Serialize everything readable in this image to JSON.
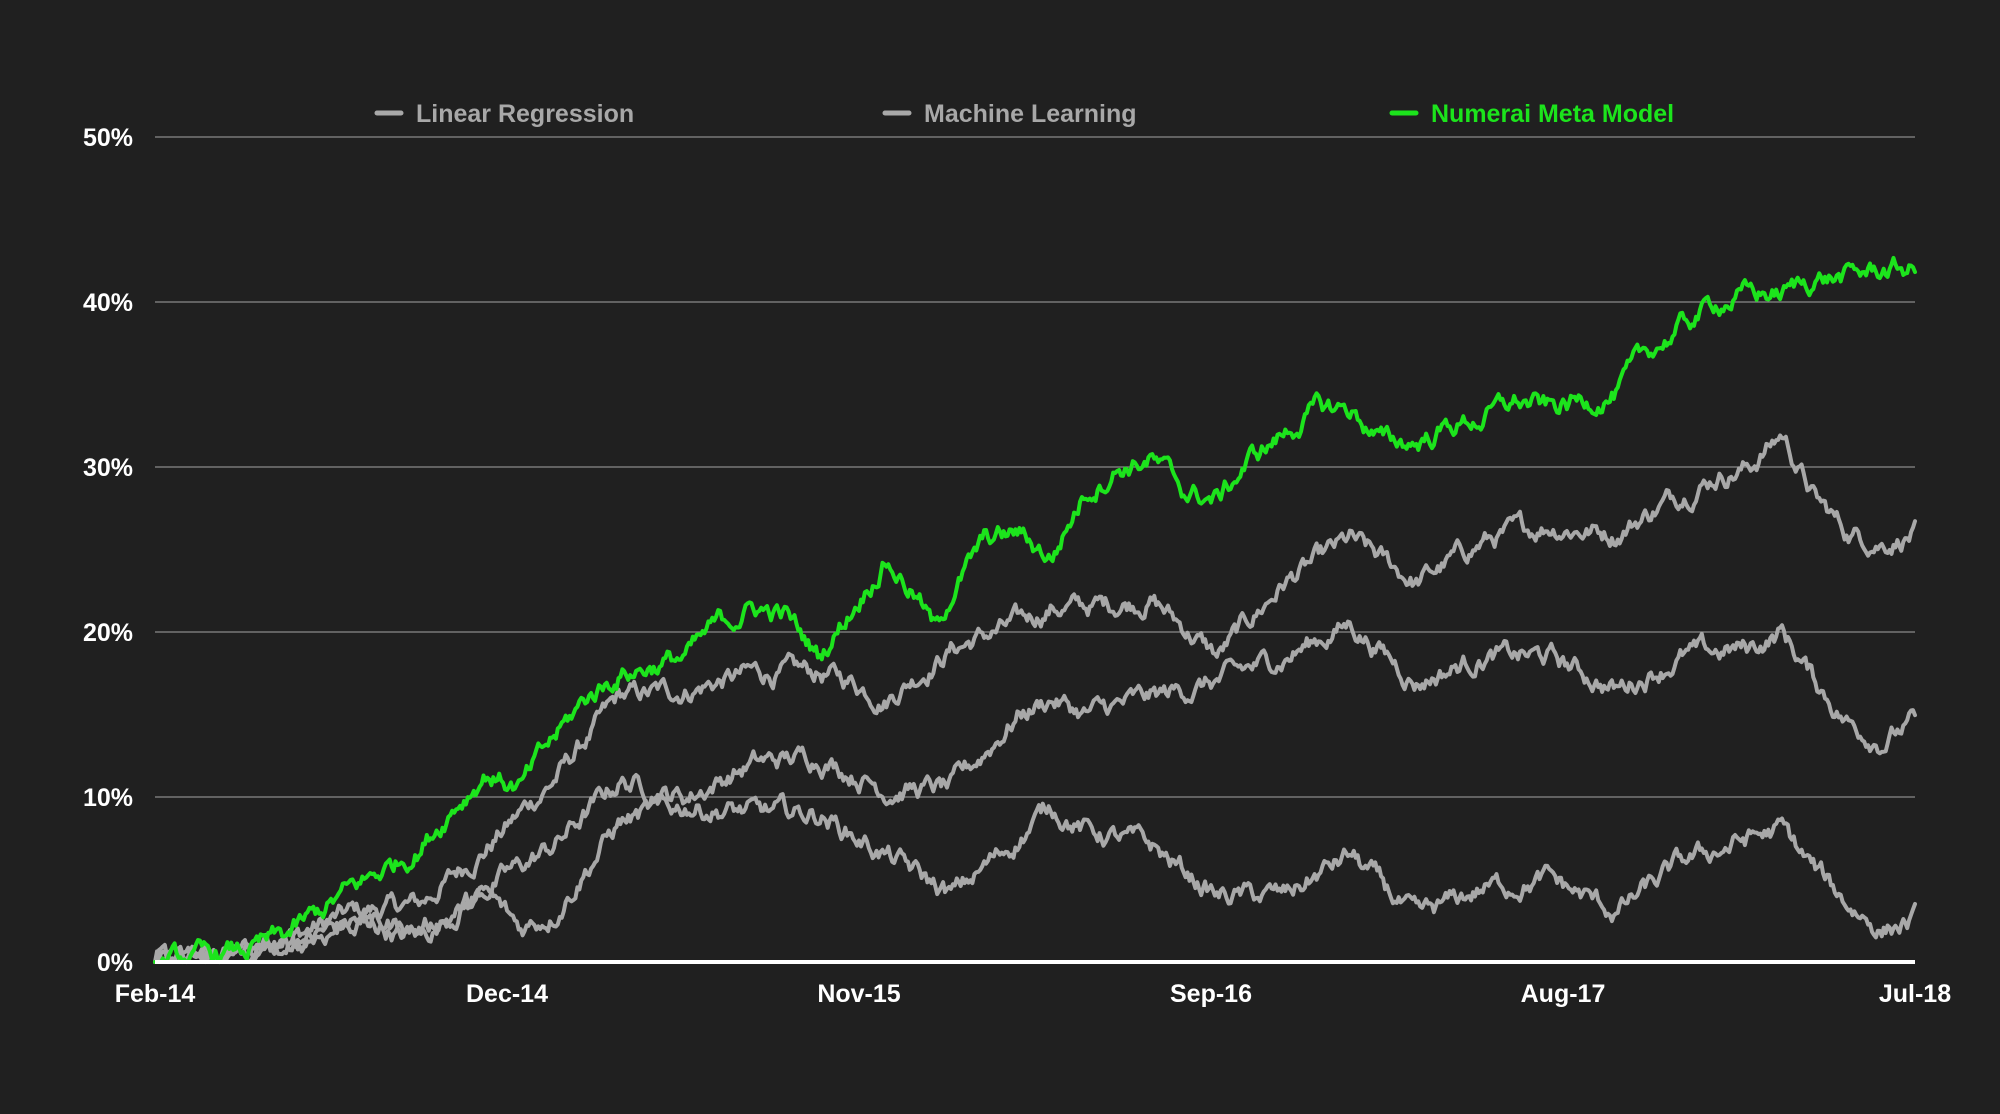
{
  "chart_data": {
    "type": "line",
    "title": "",
    "xlabel": "",
    "ylabel": "",
    "x_tick_labels": [
      "Feb-14",
      "Dec-14",
      "Nov-15",
      "Sep-16",
      "Aug-17",
      "Jul-18"
    ],
    "y_tick_labels": [
      "0%",
      "10%",
      "20%",
      "30%",
      "40%",
      "50%"
    ],
    "y_ticks": [
      0,
      10,
      20,
      30,
      40,
      50
    ],
    "xlim": [
      0,
      53
    ],
    "ylim": [
      0,
      50
    ],
    "grid": true,
    "legend_position": "top",
    "x_unit": "months since Feb-14",
    "colors": {
      "background": "#202020",
      "gray": "#a8a8a8",
      "green": "#1ce41c",
      "axis": "#ffffff"
    },
    "legend": [
      {
        "name": "Linear Regression",
        "color": "#a8a8a8"
      },
      {
        "name": "Machine Learning",
        "color": "#a8a8a8"
      },
      {
        "name": "Numerai Meta Model",
        "color": "#1ce41c"
      }
    ],
    "series": [
      {
        "color": "#a8a8a8",
        "x": [
          0,
          2,
          4,
          6,
          8,
          10,
          12,
          14,
          16,
          18,
          20,
          21,
          22,
          24,
          26,
          27,
          28,
          30,
          32,
          34,
          36,
          38,
          40,
          42,
          44,
          46,
          47,
          48,
          49,
          50,
          51,
          52,
          53
        ],
        "values": [
          0,
          0.3,
          1.5,
          3,
          3.5,
          7,
          11,
          16,
          16.5,
          17.5,
          17.5,
          17,
          16,
          19,
          20.5,
          21.5,
          21.5,
          22,
          18.5,
          23,
          25.5,
          23,
          25.5,
          26.5,
          26,
          28.5,
          29.5,
          30,
          32,
          28,
          26,
          25.5,
          26
        ]
      },
      {
        "color": "#a8a8a8",
        "x": [
          0,
          2,
          4,
          6,
          8,
          10,
          12,
          14,
          16,
          18,
          20,
          22,
          24,
          26,
          27,
          28,
          30,
          32,
          34,
          36,
          38,
          40,
          42,
          44,
          46,
          48,
          49,
          50,
          51,
          52,
          53
        ],
        "values": [
          0,
          0.2,
          1,
          2.5,
          1.5,
          4.5,
          7,
          11,
          10,
          12,
          12.5,
          10.5,
          10.5,
          15,
          16,
          15,
          16,
          17,
          18.5,
          20.5,
          17,
          18.5,
          18.5,
          16.5,
          18.5,
          19,
          20,
          17,
          14.5,
          13.5,
          14.5
        ]
      },
      {
        "color": "#a8a8a8",
        "x": [
          0,
          2,
          4,
          6,
          8,
          10,
          11,
          12,
          14,
          16,
          18,
          20,
          22,
          24,
          26,
          27,
          28,
          30,
          32,
          34,
          36,
          38,
          40,
          42,
          44,
          46,
          48,
          49,
          50,
          51,
          52,
          53
        ],
        "values": [
          0,
          0.2,
          1,
          2.5,
          2,
          4,
          2,
          3,
          8.5,
          9.5,
          9,
          9,
          6.5,
          4,
          7.5,
          9.5,
          8,
          7,
          4,
          4,
          6.5,
          2.5,
          4.5,
          5,
          3,
          6,
          7.5,
          8,
          5.5,
          3.5,
          2,
          2.5
        ]
      },
      {
        "color": "#1ce41c",
        "x": [
          0,
          1.5,
          3,
          4,
          6,
          8,
          9,
          10,
          11,
          12,
          13,
          14,
          15,
          16,
          17,
          18,
          19,
          20,
          21,
          22,
          23,
          23.5,
          24,
          25,
          26,
          27,
          28,
          29,
          30,
          31,
          32,
          33,
          34,
          35,
          36,
          37,
          38,
          39,
          40,
          41,
          42,
          43,
          44,
          45,
          46,
          47,
          48,
          49,
          50,
          51,
          52,
          53
        ],
        "values": [
          0,
          0.3,
          0.8,
          1.6,
          4.5,
          7,
          9.5,
          11.5,
          10.5,
          13.5,
          16,
          17.5,
          18,
          18.5,
          20.5,
          21.5,
          21,
          18.5,
          21.5,
          24.5,
          22,
          20,
          22.5,
          25.5,
          26,
          24.5,
          28.5,
          30,
          30.5,
          28.5,
          28,
          30.5,
          32,
          33.5,
          33.5,
          31.5,
          31.5,
          32.5,
          33,
          34,
          33.5,
          34,
          34.5,
          37,
          38.5,
          40,
          40.5,
          40.5,
          41.5,
          41.5,
          42,
          42
        ]
      }
    ]
  }
}
